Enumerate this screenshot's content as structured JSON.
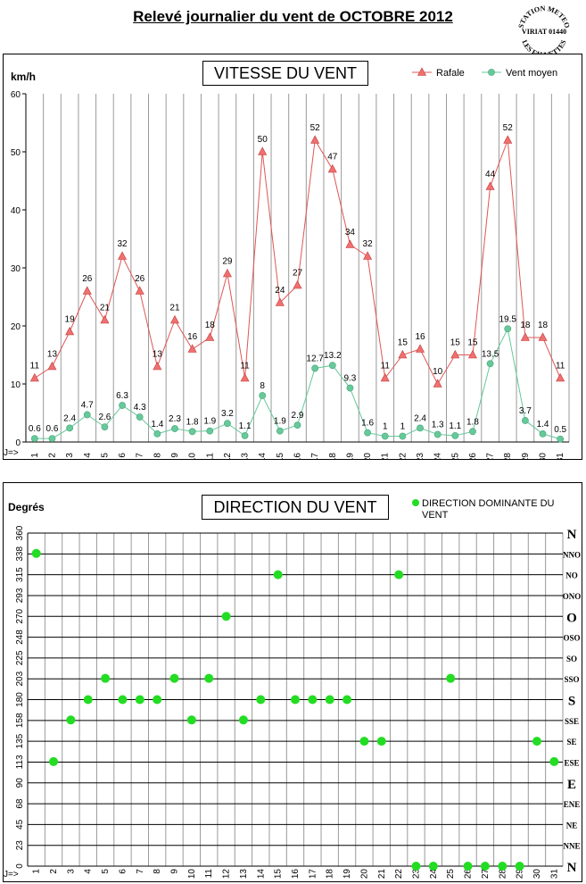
{
  "page": {
    "title": "Relevé journalier du vent de OCTOBRE 2012",
    "stamp": [
      "STATION METEO",
      "VIRIAT 01440",
      "LES FAUVETTES"
    ]
  },
  "colors": {
    "gust": "#e05555",
    "gust_fill": "#f07070",
    "mean": "#66c99a",
    "dir": "#22dd22",
    "grid": "#9a9a9a"
  },
  "chart_data": [
    {
      "type": "line",
      "title": "VITESSE DU VENT",
      "ylabel": "km/h",
      "x_prefix": "J=>",
      "categories": [
        "1",
        "2",
        "3",
        "4",
        "5",
        "6",
        "7",
        "8",
        "9",
        "10",
        "11",
        "12",
        "13",
        "14",
        "15",
        "16",
        "17",
        "18",
        "19",
        "20",
        "21",
        "22",
        "23",
        "24",
        "25",
        "26",
        "27",
        "28",
        "29",
        "30",
        "31"
      ],
      "ylim": [
        0,
        60
      ],
      "yticks": [
        0,
        10,
        20,
        30,
        40,
        50,
        60
      ],
      "grid": "vertical",
      "legend_position": "top-right",
      "series": [
        {
          "name": "Rafale",
          "marker": "triangle",
          "values": [
            11,
            13,
            19,
            26,
            21,
            32,
            26,
            13,
            21,
            16,
            18,
            29,
            11,
            50,
            24,
            27,
            52,
            47,
            34,
            32,
            11,
            15,
            16,
            10,
            15,
            15,
            44,
            52,
            18,
            18,
            11
          ]
        },
        {
          "name": "Vent moyen",
          "marker": "circle",
          "values": [
            0.6,
            0.6,
            2.4,
            4.7,
            2.6,
            6.3,
            4.3,
            1.4,
            2.3,
            1.8,
            1.9,
            3.2,
            1.1,
            8,
            1.9,
            2.9,
            12.7,
            13.2,
            9.3,
            1.6,
            1,
            1,
            2.4,
            1.3,
            1.1,
            1.8,
            13.5,
            19.5,
            3.7,
            1.4,
            0.5
          ]
        }
      ]
    },
    {
      "type": "scatter",
      "title": "DIRECTION DU VENT",
      "ylabel": "Degrés",
      "x_prefix": "J=>",
      "categories": [
        "1",
        "2",
        "3",
        "4",
        "5",
        "6",
        "7",
        "8",
        "9",
        "10",
        "11",
        "12",
        "13",
        "14",
        "15",
        "16",
        "17",
        "18",
        "19",
        "20",
        "21",
        "22",
        "23",
        "24",
        "25",
        "26",
        "27",
        "28",
        "29",
        "30",
        "31"
      ],
      "ylim": [
        0,
        360
      ],
      "yticks": [
        "0",
        "23",
        "45",
        "68",
        "90",
        "113",
        "135",
        "158",
        "180",
        "203",
        "225",
        "248",
        "270",
        "293",
        "315",
        "338",
        "360"
      ],
      "compass": [
        "N",
        "NNE",
        "NE",
        "ENE",
        "E",
        "ESE",
        "SE",
        "SSE",
        "S",
        "SSO",
        "SO",
        "OSO",
        "O",
        "ONO",
        "NO",
        "NNO",
        "N"
      ],
      "compass_major": [
        "N",
        "E",
        "S",
        "O"
      ],
      "grid": "both",
      "legend_position": "top-right",
      "series": [
        {
          "name": "DIRECTION DOMINANTE DU VENT",
          "values": [
            338,
            113,
            158,
            180,
            203,
            180,
            180,
            180,
            203,
            158,
            203,
            270,
            158,
            180,
            315,
            180,
            180,
            180,
            180,
            135,
            135,
            315,
            0,
            0,
            203,
            0,
            0,
            0,
            0,
            135,
            113
          ]
        }
      ]
    }
  ]
}
